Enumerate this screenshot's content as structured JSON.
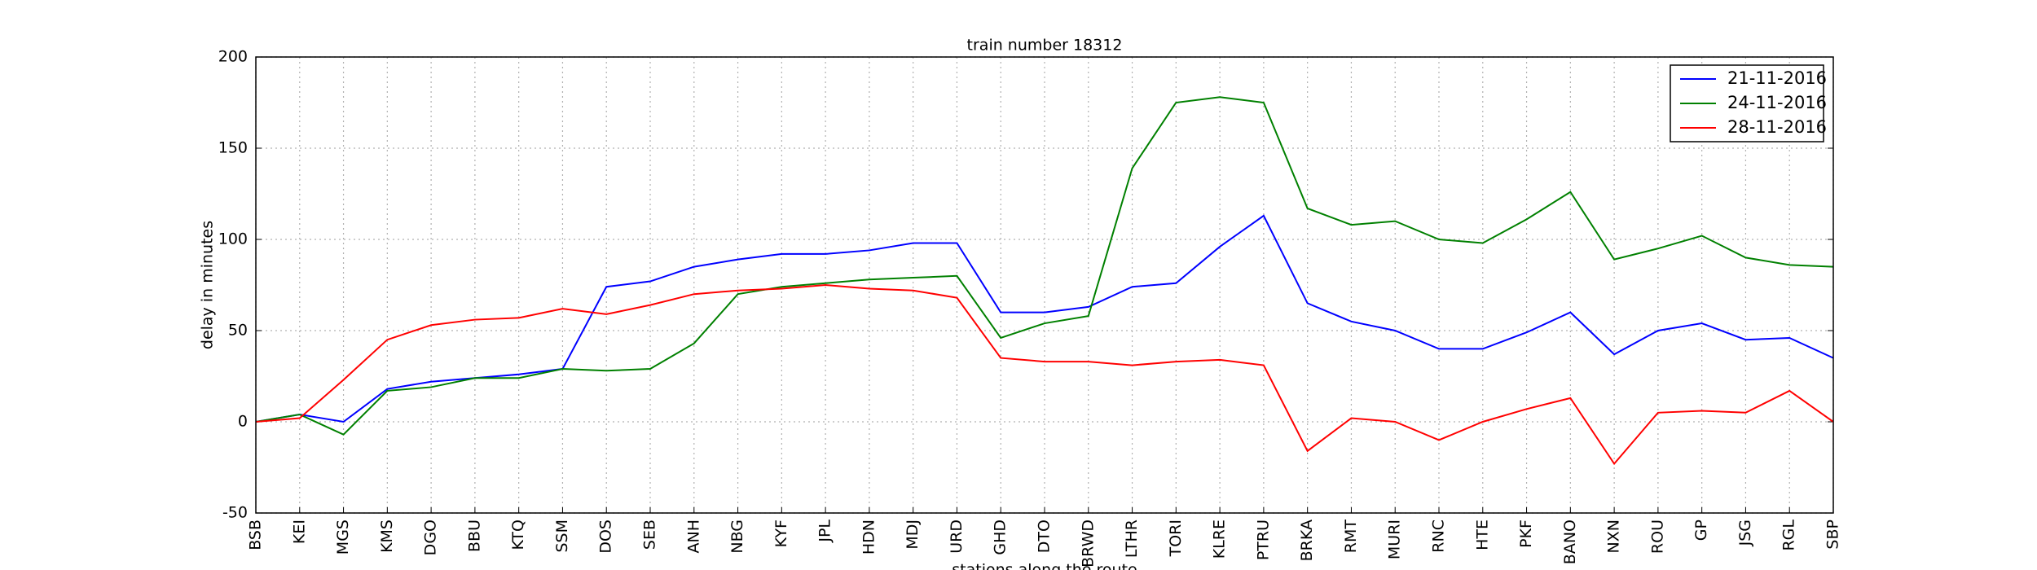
{
  "chart_data": {
    "type": "line",
    "title": "train number 18312",
    "x_label": "stations along the route",
    "y_label": "delay in minutes",
    "categories": [
      "BSB",
      "KEI",
      "MGS",
      "KMS",
      "DGO",
      "BBU",
      "KTQ",
      "SSM",
      "DOS",
      "SEB",
      "ANH",
      "NBG",
      "KYF",
      "JPL",
      "HDN",
      "MDJ",
      "URD",
      "GHD",
      "DTO",
      "BRWD",
      "LTHR",
      "TORI",
      "KLRE",
      "PTRU",
      "BRKA",
      "RMT",
      "MURI",
      "RNC",
      "HTE",
      "PKF",
      "BANO",
      "NXN",
      "ROU",
      "GP",
      "JSG",
      "RGL",
      "SBP"
    ],
    "series": [
      {
        "name": "21-11-2016",
        "color": "#0000ff",
        "values": [
          0,
          4,
          0,
          18,
          22,
          24,
          26,
          29,
          74,
          77,
          85,
          89,
          92,
          92,
          94,
          98,
          98,
          60,
          60,
          63,
          74,
          76,
          96,
          113,
          65,
          55,
          50,
          40,
          40,
          49,
          60,
          37,
          50,
          54,
          45,
          46,
          35
        ]
      },
      {
        "name": "24-11-2016",
        "color": "#008000",
        "values": [
          0,
          4,
          -7,
          17,
          19,
          24,
          24,
          29,
          28,
          29,
          43,
          70,
          74,
          76,
          78,
          79,
          80,
          46,
          54,
          58,
          139,
          175,
          178,
          175,
          117,
          108,
          110,
          100,
          98,
          111,
          126,
          89,
          95,
          102,
          90,
          86,
          85
        ]
      },
      {
        "name": "28-11-2016",
        "color": "#ff0000",
        "values": [
          0,
          2,
          23,
          45,
          53,
          56,
          57,
          62,
          59,
          64,
          70,
          72,
          73,
          75,
          73,
          72,
          68,
          35,
          33,
          33,
          31,
          33,
          34,
          31,
          -16,
          2,
          0,
          -10,
          0,
          7,
          13,
          -23,
          5,
          6,
          5,
          17,
          0
        ]
      }
    ],
    "ylim": [
      -50,
      200
    ],
    "yticks": [
      -50,
      0,
      50,
      100,
      150,
      200
    ],
    "grid": true,
    "legend": "upper right"
  }
}
